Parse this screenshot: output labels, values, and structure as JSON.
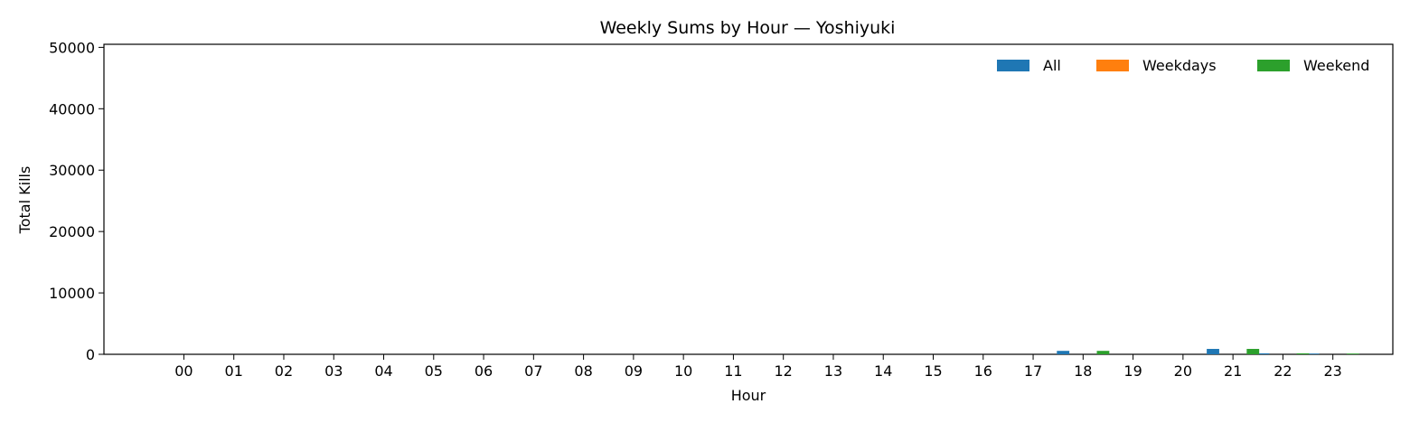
{
  "chart_data": {
    "type": "bar",
    "title": "Weekly Sums by Hour — Yoshiyuki",
    "xlabel": "Hour",
    "ylabel": "Total Kills",
    "categories": [
      "00",
      "01",
      "02",
      "03",
      "04",
      "05",
      "06",
      "07",
      "08",
      "09",
      "10",
      "11",
      "12",
      "13",
      "14",
      "15",
      "16",
      "17",
      "18",
      "19",
      "20",
      "21",
      "22",
      "23"
    ],
    "series": [
      {
        "name": "All",
        "color": "#1f77b4",
        "values": [
          0,
          0,
          0,
          0,
          0,
          0,
          0,
          0,
          0,
          0,
          0,
          0,
          0,
          0,
          0,
          0,
          0,
          0,
          560,
          0,
          0,
          880,
          160,
          120
        ]
      },
      {
        "name": "Weekdays",
        "color": "#ff7f0e",
        "values": [
          0,
          0,
          0,
          0,
          0,
          0,
          0,
          0,
          0,
          0,
          0,
          0,
          0,
          0,
          0,
          0,
          0,
          0,
          0,
          0,
          0,
          0,
          0,
          0
        ]
      },
      {
        "name": "Weekend",
        "color": "#2ca02c",
        "values": [
          0,
          0,
          0,
          0,
          0,
          0,
          0,
          0,
          0,
          0,
          0,
          0,
          0,
          0,
          0,
          0,
          0,
          0,
          560,
          0,
          0,
          880,
          160,
          120
        ]
      }
    ],
    "yticks": [
      "0",
      "10000",
      "20000",
      "30000",
      "40000",
      "50000"
    ],
    "ylim": [
      0,
      50500
    ],
    "xlim": [
      -1.6,
      24.2
    ],
    "grid": false,
    "legend": "top-right"
  }
}
